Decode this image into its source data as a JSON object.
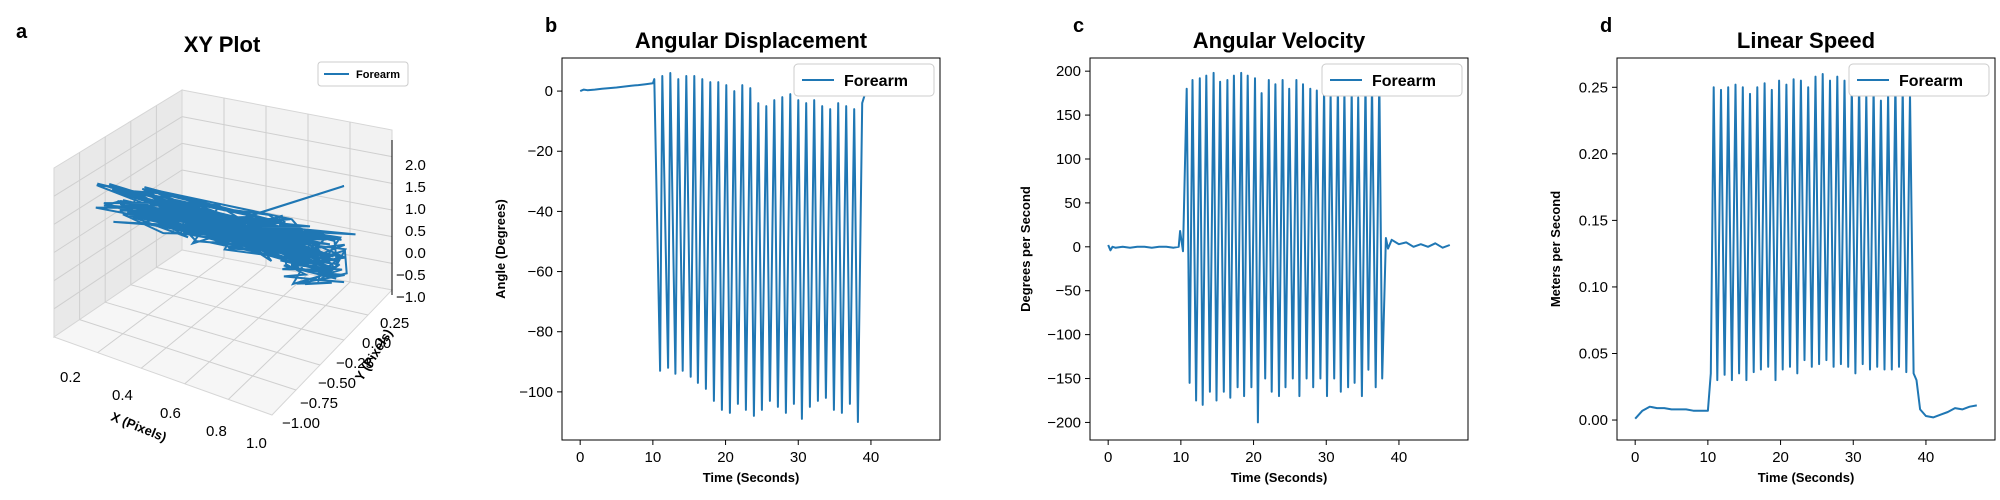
{
  "colors": {
    "series": "#1f77b4",
    "pane": "#f2f2f2",
    "pane_edge": "#d6d6d6",
    "grid": "#cfcfcf"
  },
  "chart_data": [
    {
      "panel_label": "a",
      "type": "line3d",
      "title": "XY Plot",
      "xlabel": "X (Pixels)",
      "ylabel": "Y (Pixels)",
      "zlabel": "",
      "x_ticks": [
        "0.2",
        "0.4",
        "0.6",
        "0.8",
        "1.0"
      ],
      "y_ticks": [
        "0.25",
        "0.00",
        "−0.25",
        "−0.50",
        "−0.75",
        "−1.00"
      ],
      "z_ticks": [
        "2.0",
        "1.5",
        "1.0",
        "0.5",
        "0.0",
        "−0.5",
        "−1.0"
      ],
      "xlim": [
        0.1,
        1.0
      ],
      "ylim": [
        -1.1,
        0.3
      ],
      "zlim": [
        -1.0,
        2.3
      ],
      "legend": "top-right",
      "series": [
        {
          "name": "Forearm",
          "description_points": [
            [
              0.25,
              0.1,
              0.2
            ],
            [
              0.5,
              -0.3,
              0.3
            ],
            [
              0.8,
              -0.7,
              -0.6
            ],
            [
              0.55,
              -0.1,
              1.2
            ]
          ]
        }
      ]
    },
    {
      "panel_label": "b",
      "type": "line",
      "title": "Angular Displacement",
      "xlabel": "Time (Seconds)",
      "ylabel": "Angle (Degrees)",
      "xlim": [
        -2.5,
        49.5
      ],
      "ylim": [
        -116,
        11
      ],
      "x_ticks": [
        0,
        10,
        20,
        30,
        40
      ],
      "y_ticks": [
        0,
        -20,
        -40,
        -60,
        -80,
        -100
      ],
      "legend": "top-right",
      "series_name": "Forearm",
      "series": [
        {
          "name": "Forearm",
          "x": [
            0,
            0.5,
            1,
            2,
            3,
            4,
            5,
            6,
            7,
            8,
            9,
            10,
            10.2,
            11.0,
            11.3,
            12.1,
            12.4,
            13.1,
            13.5,
            14.1,
            14.6,
            15.2,
            15.7,
            16.2,
            16.8,
            17.3,
            17.9,
            18.4,
            19.0,
            19.5,
            20.1,
            20.6,
            21.2,
            21.7,
            22.3,
            22.8,
            23.4,
            23.9,
            24.5,
            25.0,
            25.6,
            26.1,
            26.7,
            27.2,
            27.8,
            28.3,
            28.9,
            29.4,
            30.0,
            30.5,
            31.1,
            31.6,
            32.2,
            32.7,
            33.3,
            33.8,
            34.4,
            34.9,
            35.5,
            36.0,
            36.6,
            37.1,
            37.7,
            38.2,
            38.8,
            39.3,
            40,
            41,
            42,
            43,
            44,
            45,
            46,
            47
          ],
          "y": [
            0,
            0.5,
            0.3,
            0.5,
            0.8,
            1,
            1.2,
            1.5,
            1.8,
            2,
            2.3,
            2.6,
            4,
            -93,
            5,
            -92,
            6,
            -94,
            4,
            -93,
            5,
            -95,
            5,
            -97,
            4,
            -99,
            3,
            -103,
            3,
            -106,
            2,
            -107,
            0,
            -104,
            2,
            -106,
            1,
            -108,
            -4,
            -106,
            -5,
            -103,
            -3,
            -105,
            -2,
            -107,
            -1,
            -104,
            -3,
            -109,
            -4,
            -105,
            -3,
            -103,
            -5,
            -102,
            -6,
            -106,
            -4,
            -107,
            -5,
            -104,
            -6,
            -110,
            -4,
            0,
            1,
            1.5,
            2,
            2.5,
            3,
            3.5,
            4,
            4.2
          ]
        }
      ]
    },
    {
      "panel_label": "c",
      "type": "line",
      "title": "Angular Velocity",
      "xlabel": "Time (Seconds)",
      "ylabel": "Degrees per Second",
      "xlim": [
        -2.5,
        49.5
      ],
      "ylim": [
        -220,
        215
      ],
      "x_ticks": [
        0,
        10,
        20,
        30,
        40
      ],
      "y_ticks": [
        200,
        150,
        100,
        50,
        0,
        -50,
        -100,
        -150,
        -200
      ],
      "legend": "top-right",
      "series": [
        {
          "name": "Forearm",
          "x": [
            0,
            0.3,
            0.6,
            1,
            2,
            3,
            4,
            5,
            6,
            7,
            8,
            9,
            9.7,
            9.9,
            10.3,
            10.8,
            11.2,
            11.6,
            12.1,
            12.6,
            13.0,
            13.5,
            14.0,
            14.5,
            14.9,
            15.4,
            15.9,
            16.4,
            16.8,
            17.3,
            17.8,
            18.3,
            18.7,
            19.2,
            19.7,
            20.2,
            20.6,
            21.1,
            21.6,
            22.1,
            22.5,
            23.0,
            23.5,
            24.0,
            24.4,
            24.9,
            25.4,
            25.9,
            26.3,
            26.8,
            27.3,
            27.8,
            28.2,
            28.7,
            29.2,
            29.7,
            30.1,
            30.6,
            31.1,
            31.6,
            32.0,
            32.5,
            33.0,
            33.5,
            33.9,
            34.4,
            34.9,
            35.4,
            35.8,
            36.3,
            36.8,
            37.3,
            37.7,
            38.2,
            38.5,
            39,
            40,
            41,
            42,
            43,
            44,
            45,
            46,
            47
          ],
          "y": [
            2,
            -4,
            0,
            -1,
            0,
            -1,
            0,
            0,
            -1,
            0,
            0,
            -1,
            0,
            18,
            -5,
            180,
            -155,
            190,
            -175,
            192,
            -180,
            195,
            -165,
            198,
            -175,
            188,
            -165,
            190,
            -172,
            195,
            -160,
            198,
            -170,
            195,
            -160,
            192,
            -200,
            175,
            -150,
            190,
            -165,
            185,
            -170,
            190,
            -160,
            180,
            -150,
            190,
            -170,
            185,
            -150,
            180,
            -160,
            178,
            -150,
            182,
            -170,
            175,
            -150,
            186,
            -165,
            178,
            -160,
            180,
            -155,
            170,
            -170,
            190,
            -140,
            186,
            -160,
            195,
            -150,
            10,
            -2,
            8,
            3,
            5,
            0,
            3,
            0,
            4,
            -1,
            2
          ]
        }
      ]
    },
    {
      "panel_label": "d",
      "type": "line",
      "title": "Linear Speed",
      "xlabel": "Time (Seconds)",
      "ylabel": "Meters per Second",
      "xlim": [
        -2.5,
        49.5
      ],
      "ylim": [
        -0.015,
        0.272
      ],
      "x_ticks": [
        0,
        10,
        20,
        30,
        40
      ],
      "y_ticks": [
        "0.00",
        "0.05",
        "0.10",
        "0.15",
        "0.20",
        "0.25"
      ],
      "legend": "top-right",
      "series": [
        {
          "name": "Forearm",
          "x": [
            0,
            0.5,
            1,
            2,
            3,
            4,
            5,
            6,
            7,
            8,
            9,
            10,
            10.4,
            10.8,
            11.3,
            11.8,
            12.3,
            12.8,
            13.3,
            13.8,
            14.3,
            14.8,
            15.3,
            15.8,
            16.3,
            16.8,
            17.3,
            17.8,
            18.3,
            18.8,
            19.3,
            19.8,
            20.3,
            20.8,
            21.3,
            21.8,
            22.3,
            22.8,
            23.3,
            23.8,
            24.3,
            24.8,
            25.3,
            25.8,
            26.3,
            26.8,
            27.3,
            27.8,
            28.3,
            28.8,
            29.3,
            29.8,
            30.3,
            30.8,
            31.3,
            31.8,
            32.3,
            32.8,
            33.3,
            33.8,
            34.3,
            34.8,
            35.3,
            35.8,
            36.3,
            36.8,
            37.3,
            37.8,
            38.3,
            38.7,
            39.2,
            40,
            41,
            42,
            43,
            44,
            45,
            46,
            47
          ],
          "y": [
            0.001,
            0.004,
            0.007,
            0.01,
            0.009,
            0.009,
            0.008,
            0.008,
            0.008,
            0.007,
            0.007,
            0.007,
            0.035,
            0.25,
            0.03,
            0.248,
            0.034,
            0.25,
            0.03,
            0.252,
            0.035,
            0.25,
            0.03,
            0.245,
            0.036,
            0.25,
            0.038,
            0.253,
            0.04,
            0.248,
            0.03,
            0.255,
            0.038,
            0.252,
            0.04,
            0.256,
            0.035,
            0.255,
            0.045,
            0.25,
            0.04,
            0.258,
            0.042,
            0.26,
            0.045,
            0.255,
            0.04,
            0.258,
            0.042,
            0.255,
            0.04,
            0.252,
            0.035,
            0.255,
            0.042,
            0.245,
            0.038,
            0.25,
            0.04,
            0.24,
            0.038,
            0.245,
            0.038,
            0.255,
            0.04,
            0.25,
            0.036,
            0.245,
            0.035,
            0.03,
            0.008,
            0.003,
            0.002,
            0.004,
            0.006,
            0.009,
            0.008,
            0.01,
            0.011
          ]
        }
      ]
    }
  ]
}
